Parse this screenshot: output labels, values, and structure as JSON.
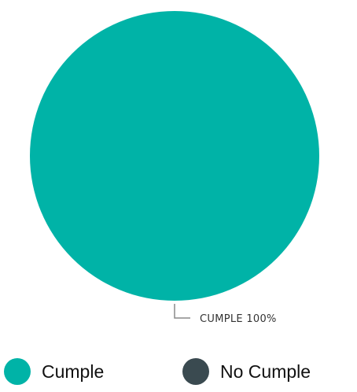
{
  "chart_data": {
    "type": "pie",
    "slices": [
      {
        "name": "Cumple",
        "value": 100,
        "color": "#00B3A7"
      },
      {
        "name": "No Cumple",
        "value": 0,
        "color": "#3A4A50"
      }
    ],
    "data_labels": [
      "CUMPLE 100%"
    ],
    "legend": {
      "placement": "bottom",
      "items": [
        {
          "label": "Cumple",
          "color": "#00B3A7"
        },
        {
          "label": "No Cumple",
          "color": "#3A4A50"
        }
      ]
    }
  }
}
